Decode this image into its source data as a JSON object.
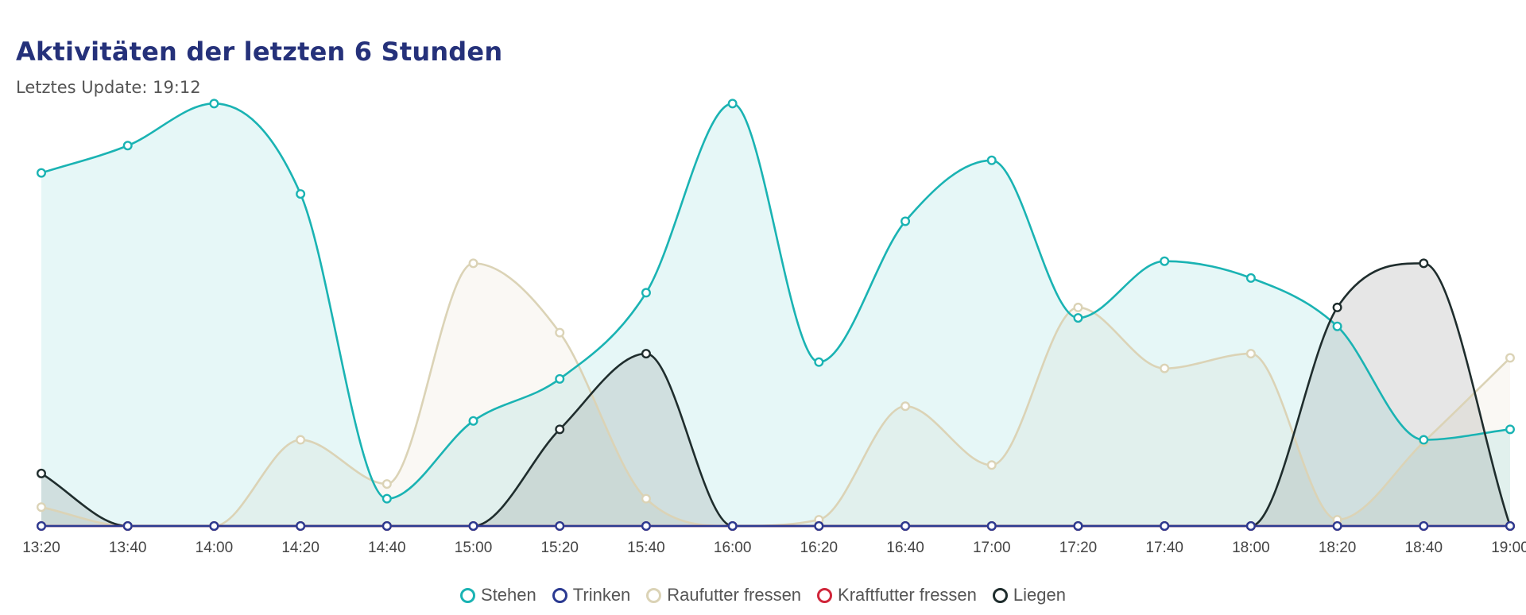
{
  "header": {
    "title": "Aktivitäten der letzten 6 Stunden",
    "subtitle": "Letztes Update: 19:12"
  },
  "chart_data": {
    "type": "area",
    "categories": [
      "13:20",
      "13:40",
      "14:00",
      "14:20",
      "14:40",
      "15:00",
      "15:20",
      "15:40",
      "16:00",
      "16:20",
      "16:40",
      "17:00",
      "17:20",
      "17:40",
      "18:00",
      "18:20",
      "18:40",
      "19:00"
    ],
    "ylim": [
      0,
      100
    ],
    "grid": false,
    "legend_position": "bottom-center",
    "series": [
      {
        "name": "Stehen",
        "color": "#1ab3b3",
        "fill": "rgba(26,179,179,0.11)",
        "values": [
          84,
          90.5,
          100.5,
          79,
          6.5,
          25,
          35,
          55.5,
          100.5,
          39,
          72.5,
          87,
          49.5,
          63,
          59,
          47.5,
          20.5,
          23
        ]
      },
      {
        "name": "Trinken",
        "color": "#2b3a91",
        "fill": "rgba(0,0,0,0)",
        "values": [
          0,
          0,
          0,
          0,
          0,
          0,
          0,
          0,
          0,
          0,
          0,
          0,
          0,
          0,
          0,
          0,
          0,
          0
        ]
      },
      {
        "name": "Raufutter fressen",
        "color": "#dbd3b6",
        "fill": "rgba(219,211,182,0.15)",
        "values": [
          4.5,
          0,
          0,
          20.5,
          10,
          62.5,
          46,
          6.5,
          0,
          1.5,
          28.5,
          14.5,
          52,
          37.5,
          41,
          1.5,
          20,
          40
        ]
      },
      {
        "name": "Kraftfutter fressen",
        "color": "#d0263a",
        "fill": "rgba(0,0,0,0)",
        "values": [
          0,
          0,
          0,
          0,
          0,
          0,
          0,
          0,
          0,
          0,
          0,
          0,
          0,
          0,
          0,
          0,
          0,
          0
        ]
      },
      {
        "name": "Liegen",
        "color": "#1f2d2d",
        "fill": "rgba(60,60,60,0.13)",
        "values": [
          12.5,
          0,
          0,
          0,
          0,
          0,
          23,
          41,
          0,
          0,
          0,
          0,
          0,
          0,
          0,
          52,
          62.5,
          0
        ]
      }
    ]
  }
}
